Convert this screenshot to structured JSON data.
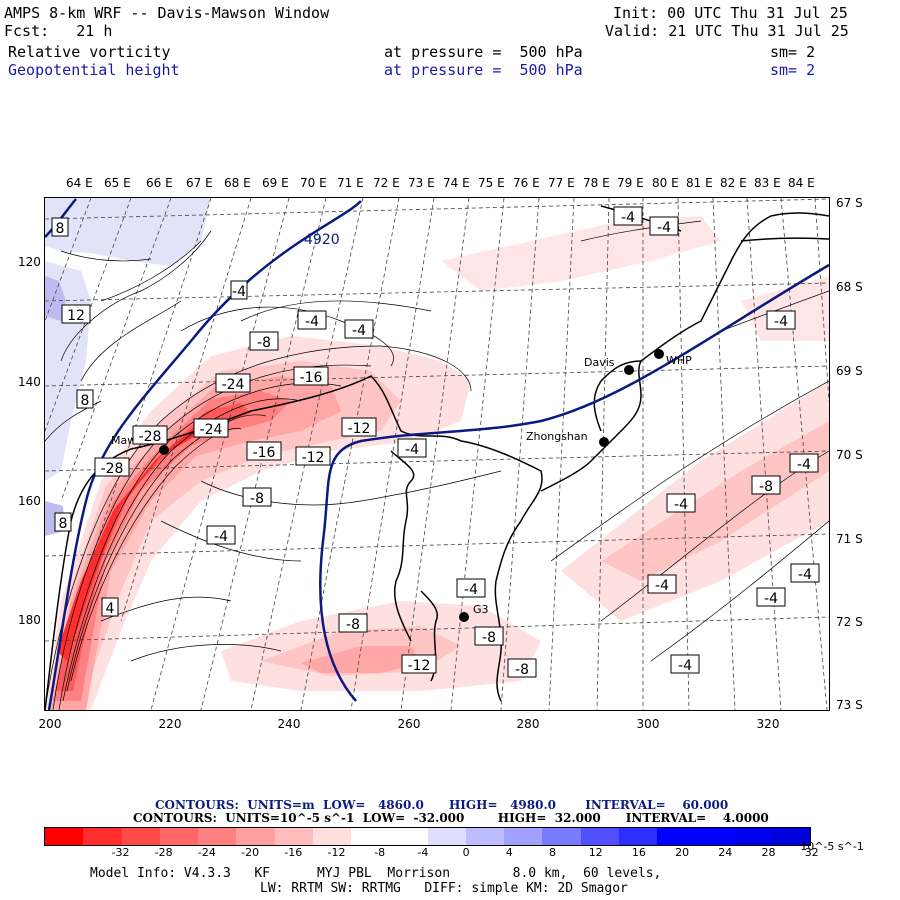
{
  "header": {
    "title": "AMPS 8-km WRF -- Davis-Mawson Window",
    "fcst": "Fcst:   21 h",
    "init": "Init: 00 UTC Thu 31 Jul 25",
    "valid": "Valid: 21 UTC Thu 31 Jul 25",
    "field1": "Relative vorticity",
    "field1_level": "at pressure =  500 hPa",
    "field1_sm": "sm= 2",
    "field2": "Geopotential height",
    "field2_level": "at pressure =  500 hPa",
    "field2_sm": "sm= 2"
  },
  "map": {
    "lon_labels": [
      "64 E",
      "65 E",
      "66 E",
      "67 E",
      "68 E",
      "69 E",
      "70 E",
      "71 E",
      "72 E",
      "73 E",
      "74 E",
      "75 E",
      "76 E",
      "77 E",
      "78 E",
      "79 E",
      "80 E",
      "81 E",
      "82 E",
      "83 E",
      "84 E"
    ],
    "lat_labels": [
      "67 S",
      "68 S",
      "69 S",
      "70 S",
      "71 S",
      "72 S",
      "73 S"
    ],
    "y_ticks": [
      "120",
      "140",
      "160",
      "180"
    ],
    "x_ticks": [
      "200",
      "220",
      "240",
      "260",
      "280",
      "300",
      "320"
    ],
    "stations": [
      "Mawson",
      "Davis",
      "WHP",
      "Zhongshan",
      "G3"
    ],
    "height_label": "4920",
    "vort_labels": [
      "8",
      "12",
      "8",
      "8",
      "-4",
      "-4",
      "-4",
      "-8",
      "-24",
      "-16",
      "-28",
      "-24",
      "-16",
      "-12",
      "-12",
      "-4",
      "-8",
      "-4",
      "-4",
      "-28",
      "4",
      "-4",
      "-4",
      "-4",
      "-8",
      "-4",
      "-4",
      "-4",
      "-8",
      "-8",
      "-12",
      "-8",
      "-4",
      "-4",
      "-4"
    ],
    "colors": {
      "height_contour": "#0a1a80",
      "coast": "#000000"
    }
  },
  "legend": {
    "line1": "CONTOURS:  UNITS=m  LOW=   4860.0      HIGH=   4980.0       INTERVAL=    60.000",
    "line2": "CONTOURS:  UNITS=10^-5 s^-1  LOW=  -32.000        HIGH=  32.000      INTERVAL=    4.0000",
    "colorbar_labels": [
      "-32",
      "-28",
      "-24",
      "-20",
      "-16",
      "-12",
      "-8",
      "-4",
      "0",
      "4",
      "8",
      "12",
      "16",
      "20",
      "24",
      "28",
      "32"
    ],
    "units_label": "10^-5 s^-1",
    "colors": [
      "#ff0000",
      "#ff2d2d",
      "#ff4a4a",
      "#ff6666",
      "#ff8080",
      "#ffa0a0",
      "#ffbdbd",
      "#ffdede",
      "#ffffff",
      "#ffffff",
      "#dedeff",
      "#bdbdff",
      "#a0a0ff",
      "#7a7aff",
      "#5050ff",
      "#2d2dff",
      "#0000ff"
    ]
  },
  "footer": {
    "line1": "Model Info: V4.3.3   KF      MYJ PBL  Morrison        8.0 km,  60 levels,",
    "line2": "LW: RRTM SW: RRTMG   DIFF: simple KM: 2D Smagor"
  }
}
